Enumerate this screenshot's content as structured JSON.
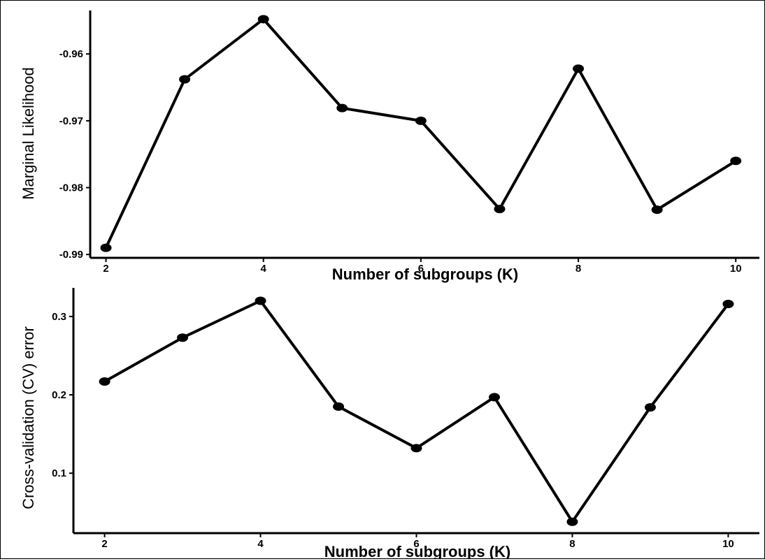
{
  "chart_data": [
    {
      "type": "line",
      "title": "",
      "xlabel": "Number of subgroups (K)",
      "ylabel": "Marginal Likelihood",
      "x": [
        2,
        3,
        4,
        5,
        6,
        7,
        8,
        9,
        10
      ],
      "series": [
        {
          "values": [
            -0.989,
            -0.9638,
            -0.9548,
            -0.9681,
            -0.97,
            -0.9832,
            -0.9622,
            -0.9833,
            -0.976
          ]
        }
      ],
      "xticks": [
        2,
        4,
        6,
        8,
        10
      ],
      "xtick_labels": [
        "2",
        "4",
        "6",
        "8",
        "10"
      ],
      "yticks": [
        -0.99,
        -0.98,
        -0.97,
        -0.96
      ],
      "ytick_labels": [
        "-0.99",
        "-0.98",
        "-0.97",
        "-0.96"
      ],
      "xlim": [
        1.8,
        10.3
      ],
      "ylim": [
        -0.9905,
        -0.9535
      ],
      "grid": false,
      "line_color": "#000000"
    },
    {
      "type": "line",
      "title": "",
      "xlabel": "Number of subgroups (K)",
      "ylabel": "Cross-validation (CV) error",
      "x": [
        2,
        3,
        4,
        5,
        6,
        7,
        8,
        9,
        10
      ],
      "series": [
        {
          "values": [
            0.217,
            0.273,
            0.32,
            0.185,
            0.132,
            0.197,
            0.038,
            0.184,
            0.316
          ]
        }
      ],
      "xticks": [
        2,
        4,
        6,
        8,
        10
      ],
      "xtick_labels": [
        "2",
        "4",
        "6",
        "8",
        "10"
      ],
      "yticks": [
        0.1,
        0.2,
        0.3
      ],
      "ytick_labels": [
        "0.1",
        "0.2",
        "0.3"
      ],
      "xlim": [
        1.6,
        10.4
      ],
      "ylim": [
        0.0235,
        0.3365
      ],
      "grid": false,
      "line_color": "#000000"
    }
  ]
}
